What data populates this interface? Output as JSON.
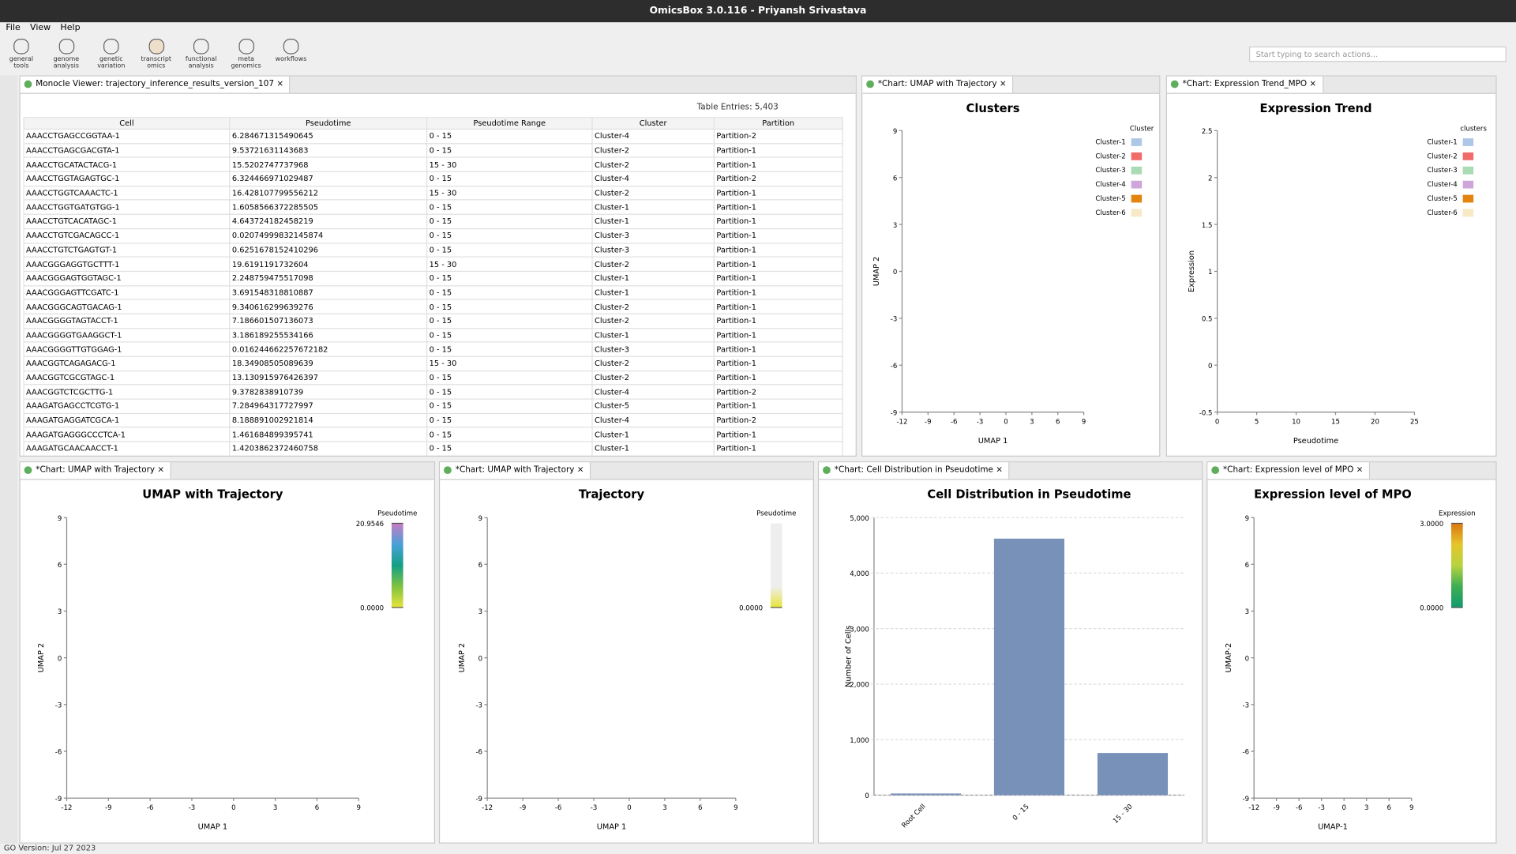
{
  "window": {
    "title": "OmicsBox 3.0.116 - Priyansh Srivastava",
    "menu": [
      "File",
      "View",
      "Help"
    ],
    "search_placeholder": "Start typing to search actions...",
    "status": "GO Version: Jul 27 2023"
  },
  "toolbar": [
    [
      "general",
      "tools"
    ],
    [
      "genome",
      "analysis"
    ],
    [
      "genetic",
      "variation"
    ],
    [
      "transcript",
      "omics"
    ],
    [
      "functional",
      "analysis"
    ],
    [
      "meta",
      "genomics"
    ],
    [
      "workflows"
    ]
  ],
  "viewer": {
    "tab": "Monocle Viewer: trajectory_inference_results_version_107",
    "entries": "Table Entries: 5,403",
    "columns": [
      "Cell",
      "Pseudotime",
      "Pseudotime Range",
      "Cluster",
      "Partition"
    ],
    "rows": [
      [
        "AAACCTGAGCCGGTAA-1",
        "6.284671315490645",
        "0 - 15",
        "Cluster-4",
        "Partition-2"
      ],
      [
        "AAACCTGAGCGACGTA-1",
        "9.53721631143683",
        "0 - 15",
        "Cluster-2",
        "Partition-1"
      ],
      [
        "AAACCTGCATACTACG-1",
        "15.5202747737968",
        "15 - 30",
        "Cluster-2",
        "Partition-1"
      ],
      [
        "AAACCTGGTAGAGTGC-1",
        "6.324466971029487",
        "0 - 15",
        "Cluster-4",
        "Partition-2"
      ],
      [
        "AAACCTGGTCAAACTC-1",
        "16.428107799556212",
        "15 - 30",
        "Cluster-2",
        "Partition-1"
      ],
      [
        "AAACCTGGTGATGTGG-1",
        "1.6058566372285505",
        "0 - 15",
        "Cluster-1",
        "Partition-1"
      ],
      [
        "AAACCTGTCACATAGC-1",
        "4.643724182458219",
        "0 - 15",
        "Cluster-1",
        "Partition-1"
      ],
      [
        "AAACCTGTCGACAGCC-1",
        "0.02074999832145874",
        "0 - 15",
        "Cluster-3",
        "Partition-1"
      ],
      [
        "AAACCTGTCTGAGTGT-1",
        "0.6251678152410296",
        "0 - 15",
        "Cluster-3",
        "Partition-1"
      ],
      [
        "AAACGGGAGGTGCTTT-1",
        "19.6191191732604",
        "15 - 30",
        "Cluster-2",
        "Partition-1"
      ],
      [
        "AAACGGGAGTGGTAGC-1",
        "2.248759475517098",
        "0 - 15",
        "Cluster-1",
        "Partition-1"
      ],
      [
        "AAACGGGAGTTCGATC-1",
        "3.691548318810887",
        "0 - 15",
        "Cluster-1",
        "Partition-1"
      ],
      [
        "AAACGGGCAGTGACAG-1",
        "9.340616299639276",
        "0 - 15",
        "Cluster-2",
        "Partition-1"
      ],
      [
        "AAACGGGGTAGTACCT-1",
        "7.186601507136073",
        "0 - 15",
        "Cluster-2",
        "Partition-1"
      ],
      [
        "AAACGGGGTGAAGGCT-1",
        "3.186189255534166",
        "0 - 15",
        "Cluster-1",
        "Partition-1"
      ],
      [
        "AAACGGGGTTGTGGAG-1",
        "0.016244662257672182",
        "0 - 15",
        "Cluster-3",
        "Partition-1"
      ],
      [
        "AAACGGTCAGAGACG-1",
        "18.34908505089639",
        "15 - 30",
        "Cluster-2",
        "Partition-1"
      ],
      [
        "AAACGGTCGCGTAGC-1",
        "13.130915976426397",
        "0 - 15",
        "Cluster-2",
        "Partition-1"
      ],
      [
        "AAACGGTCTCGCTTG-1",
        "9.3782838910739",
        "0 - 15",
        "Cluster-4",
        "Partition-2"
      ],
      [
        "AAAGATGAGCCTCGTG-1",
        "7.284964317727997",
        "0 - 15",
        "Cluster-5",
        "Partition-1"
      ],
      [
        "AAAGATGAGGATCGCA-1",
        "8.188891002921814",
        "0 - 15",
        "Cluster-4",
        "Partition-2"
      ],
      [
        "AAAGATGAGGGCCCTCA-1",
        "1.461684899395741",
        "0 - 15",
        "Cluster-1",
        "Partition-1"
      ],
      [
        "AAAGATGCAACAACCT-1",
        "1.4203862372460758",
        "0 - 15",
        "Cluster-1",
        "Partition-1"
      ]
    ]
  },
  "chart_data": [
    {
      "type": "scatter",
      "tab": "*Chart: UMAP with Trajectory",
      "title": "Clusters",
      "x_label": "UMAP 1",
      "y_label": "UMAP 2",
      "xlim": [
        -12,
        9
      ],
      "ylim": [
        -9,
        9
      ],
      "xticks": [
        -12,
        -9,
        -6,
        -3,
        0,
        3,
        6,
        9
      ],
      "yticks": [
        -9,
        -6,
        -3,
        0,
        3,
        6,
        9
      ],
      "legend": {
        "title": "Cluster",
        "entries": [
          {
            "name": "Cluster-1",
            "color": "#aec7e8"
          },
          {
            "name": "Cluster-2",
            "color": "#f26b6b"
          },
          {
            "name": "Cluster-3",
            "color": "#a9dbb4"
          },
          {
            "name": "Cluster-4",
            "color": "#cfa6dc"
          },
          {
            "name": "Cluster-5",
            "color": "#e3840f"
          },
          {
            "name": "Cluster-6",
            "color": "#f7e8c6"
          }
        ]
      }
    },
    {
      "type": "scatter",
      "tab": "*Chart: Expression Trend_MPO",
      "title": "Expression Trend",
      "x_label": "Pseudotime",
      "y_label": "Expression",
      "xlim": [
        0,
        25
      ],
      "ylim": [
        -0.5,
        2.5
      ],
      "xticks": [
        0,
        5,
        10,
        15,
        20,
        25
      ],
      "yticks": [
        -0.5,
        0,
        0.5,
        1,
        1.5,
        2,
        2.5
      ],
      "legend": {
        "title": "clusters",
        "entries": [
          {
            "name": "Cluster-1",
            "color": "#aec7e8"
          },
          {
            "name": "Cluster-2",
            "color": "#f26b6b"
          },
          {
            "name": "Cluster-3",
            "color": "#a9dbb4"
          },
          {
            "name": "Cluster-4",
            "color": "#cfa6dc"
          },
          {
            "name": "Cluster-5",
            "color": "#e3840f"
          },
          {
            "name": "Cluster-6",
            "color": "#f7e8c6"
          }
        ]
      }
    },
    {
      "type": "scatter",
      "tab": "*Chart: UMAP with Trajectory",
      "title": "UMAP with Trajectory",
      "x_label": "UMAP 1",
      "y_label": "UMAP 2",
      "xlim": [
        -12,
        9
      ],
      "ylim": [
        -9,
        9
      ],
      "xticks": [
        -12,
        -9,
        -6,
        -3,
        0,
        3,
        6,
        9
      ],
      "yticks": [
        -9,
        -6,
        -3,
        0,
        3,
        6,
        9
      ],
      "colorbar": {
        "title": "Pseudotime",
        "colors": [
          "#c77cc2",
          "#4aa0d8",
          "#13a085",
          "#7fc241",
          "#e8e43a"
        ],
        "ticks": [
          20.9546,
          {
            "value": 0,
            "label": "0.0000"
          }
        ]
      }
    },
    {
      "type": "scatter",
      "tab": "*Chart: UMAP with Trajectory",
      "title": "Trajectory",
      "x_label": "UMAP 1",
      "y_label": "UMAP 2",
      "xlim": [
        -12,
        9
      ],
      "ylim": [
        -9,
        9
      ],
      "xticks": [
        -12,
        -9,
        -6,
        -3,
        0,
        3,
        6,
        9
      ],
      "yticks": [
        -9,
        -6,
        -3,
        0,
        3,
        6,
        9
      ],
      "colorbar": {
        "title": "Pseudotime",
        "colors": [
          "#eeeeee",
          "#eeeeee",
          "#eeeeee",
          "#eeeeee",
          "#e8e43a"
        ],
        "ticks": [
          {
            "value": 0,
            "label": "0.0000"
          }
        ]
      }
    },
    {
      "type": "bar",
      "tab": "*Chart: Cell Distribution in Pseudotime",
      "title": "Cell Distribution in Pseudotime",
      "y_label": "Number of Cells",
      "categories": [
        "Root Cell",
        "0 - 15",
        "15 - 30"
      ],
      "values": [
        30,
        4620,
        760
      ],
      "color": "#7891b9",
      "ylim": [
        0,
        5000
      ],
      "yticks": [
        0,
        {
          "value": 1000,
          "label": "1,000"
        },
        {
          "value": 2000,
          "label": "2,000"
        },
        {
          "value": 3000,
          "label": "3,000"
        },
        {
          "value": 4000,
          "label": "4,000"
        },
        {
          "value": 5000,
          "label": "5,000"
        }
      ],
      "grid": true
    },
    {
      "type": "scatter",
      "tab": "*Chart: Expression level of MPO",
      "title": "Expression level of MPO",
      "x_label": "UMAP-1",
      "y_label": "UMAP-2",
      "xlim": [
        -12,
        9
      ],
      "ylim": [
        -9,
        9
      ],
      "xticks": [
        -12,
        -9,
        -6,
        -3,
        0,
        3,
        6,
        9
      ],
      "yticks": [
        -9,
        -6,
        -3,
        0,
        3,
        6,
        9
      ],
      "colorbar": {
        "title": "Expression",
        "colors": [
          "#d9780e",
          "#e6c52c",
          "#b7d33d",
          "#3fae54",
          "#119a6e"
        ],
        "ticks": [
          {
            "value": 3,
            "label": "3.0000"
          },
          {
            "value": 0,
            "label": "0.0000"
          }
        ]
      }
    }
  ]
}
